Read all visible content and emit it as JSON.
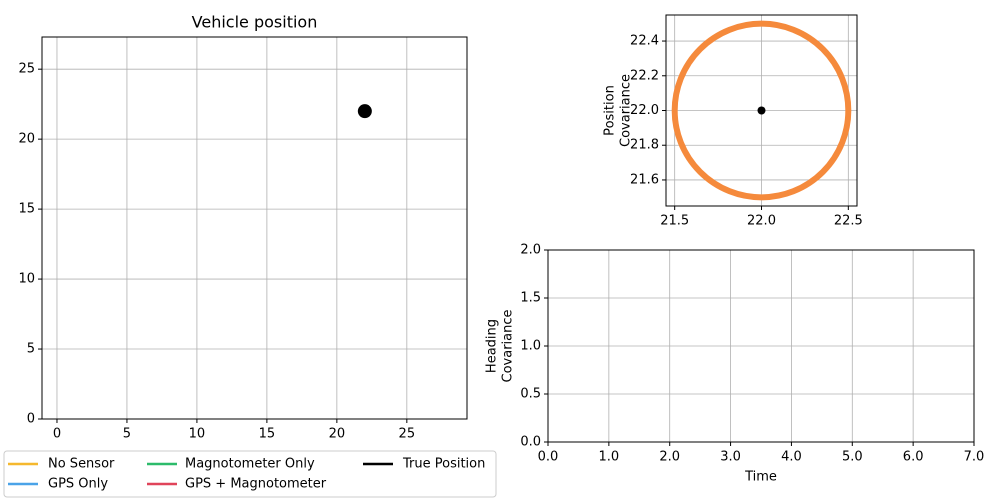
{
  "chart_data": [
    {
      "type": "scatter",
      "title": "Vehicle position",
      "xlim": [
        -1.07,
        29.3
      ],
      "ylim": [
        0,
        27.3
      ],
      "xticks": [
        0,
        5,
        10,
        15,
        20,
        25
      ],
      "yticks": [
        0,
        5,
        10,
        15,
        20,
        25
      ],
      "grid": true,
      "series": [
        {
          "name": "No Sensor",
          "color": "#f5b82e",
          "x": [],
          "y": []
        },
        {
          "name": "GPS Only",
          "color": "#4aa3e8",
          "x": [],
          "y": []
        },
        {
          "name": "Magnotometer Only",
          "color": "#2dbb6b",
          "x": [],
          "y": []
        },
        {
          "name": "GPS + Magnotometer",
          "color": "#e0445a",
          "x": [],
          "y": []
        },
        {
          "name": "True Position",
          "color": "#000000",
          "x": [
            22
          ],
          "y": [
            22
          ]
        }
      ]
    },
    {
      "type": "ellipse",
      "ylabel": [
        "Position",
        "Covariance"
      ],
      "xlim": [
        21.45,
        22.55
      ],
      "ylim": [
        21.45,
        22.55
      ],
      "xticks": [
        {
          "value": 21.5,
          "label": "21.5"
        },
        {
          "value": 22,
          "label": "22.0"
        },
        {
          "value": 22.5,
          "label": "22.5"
        }
      ],
      "yticks": [
        {
          "value": 21.6,
          "label": "21.6"
        },
        {
          "value": 21.8,
          "label": "21.8"
        },
        {
          "value": 22,
          "label": "22.0"
        },
        {
          "value": 22.2,
          "label": "22.2"
        },
        {
          "value": 22.4,
          "label": "22.4"
        }
      ],
      "grid": true,
      "center_x": 22,
      "center_y": 22,
      "radius": 0.5,
      "color": "#f58a3c"
    },
    {
      "type": "line",
      "xlabel": "Time",
      "ylabel": [
        "Heading",
        "Covariance"
      ],
      "xlim": [
        0,
        7
      ],
      "ylim": [
        0,
        2
      ],
      "xticks": [
        {
          "value": 0,
          "label": "0.0"
        },
        {
          "value": 1,
          "label": "1.0"
        },
        {
          "value": 2,
          "label": "2.0"
        },
        {
          "value": 3,
          "label": "3.0"
        },
        {
          "value": 4,
          "label": "4.0"
        },
        {
          "value": 5,
          "label": "5.0"
        },
        {
          "value": 6,
          "label": "6.0"
        },
        {
          "value": 7,
          "label": "7.0"
        }
      ],
      "yticks": [
        {
          "value": 0,
          "label": "0.0"
        },
        {
          "value": 0.5,
          "label": "0.5"
        },
        {
          "value": 1,
          "label": "1.0"
        },
        {
          "value": 1.5,
          "label": "1.5"
        },
        {
          "value": 2,
          "label": "2.0"
        }
      ],
      "grid": true
    }
  ]
}
